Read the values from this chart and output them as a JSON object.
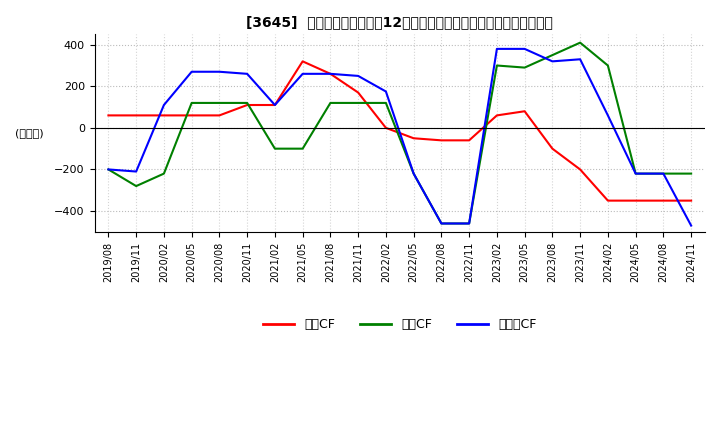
{
  "title": "[3645]  キャッシュフローの12か月移動合計の対前年同期増減額の推移",
  "ylabel": "(百万円)",
  "ylim": [
    -500,
    450
  ],
  "yticks": [
    -400,
    -200,
    0,
    200,
    400
  ],
  "legend_labels": [
    "営業CF",
    "投資CF",
    "フリーCF"
  ],
  "line_colors": [
    "#ff0000",
    "#008000",
    "#0000ff"
  ],
  "dates": [
    "2019/08",
    "2019/11",
    "2020/02",
    "2020/05",
    "2020/08",
    "2020/11",
    "2021/02",
    "2021/05",
    "2021/08",
    "2021/11",
    "2022/02",
    "2022/05",
    "2022/08",
    "2022/11",
    "2023/02",
    "2023/05",
    "2023/08",
    "2023/11",
    "2024/02",
    "2024/05",
    "2024/08",
    "2024/11"
  ],
  "operating_cf": [
    60,
    60,
    60,
    60,
    60,
    110,
    110,
    320,
    260,
    170,
    0,
    -50,
    -60,
    -60,
    60,
    80,
    -100,
    -200,
    -350,
    -350,
    -350,
    -350
  ],
  "investing_cf": [
    -200,
    -280,
    -220,
    120,
    120,
    120,
    -100,
    -100,
    120,
    120,
    120,
    -220,
    -460,
    -460,
    300,
    290,
    350,
    410,
    300,
    -220,
    -220,
    -220
  ],
  "free_cf": [
    -200,
    -210,
    110,
    270,
    270,
    260,
    110,
    260,
    260,
    250,
    175,
    -220,
    -460,
    -460,
    380,
    380,
    320,
    330,
    60,
    -220,
    -220,
    -470
  ]
}
